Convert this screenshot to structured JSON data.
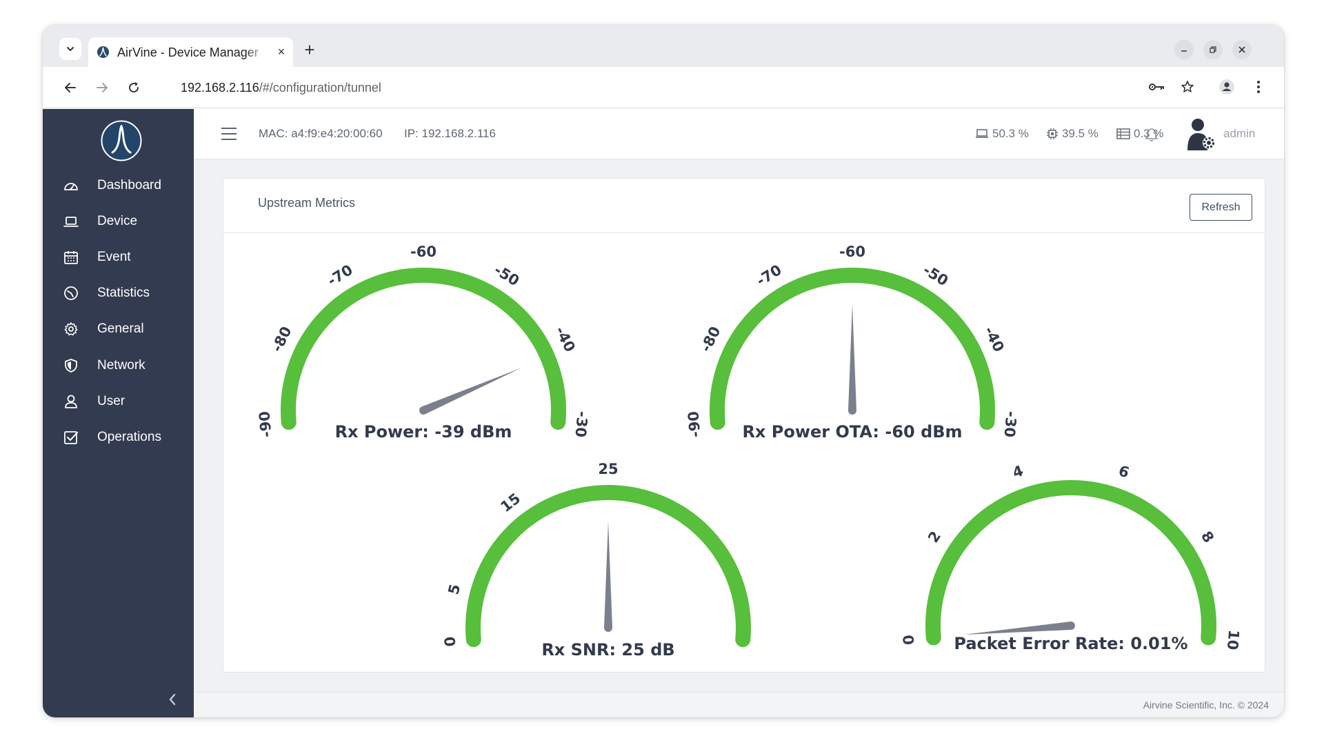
{
  "browser": {
    "tab_title": "AirVine - Device Manager",
    "url_host": "192.168.2.116",
    "url_path": "/#/configuration/tunnel",
    "new_tab_label": "+",
    "close_tab_label": "×"
  },
  "sidebar": {
    "items": [
      {
        "label": "Dashboard",
        "icon": "dashboard-icon"
      },
      {
        "label": "Device",
        "icon": "laptop-icon"
      },
      {
        "label": "Event",
        "icon": "calendar-icon"
      },
      {
        "label": "Statistics",
        "icon": "statistics-icon"
      },
      {
        "label": "General",
        "icon": "gear-icon"
      },
      {
        "label": "Network",
        "icon": "shield-icon"
      },
      {
        "label": "User",
        "icon": "user-icon"
      },
      {
        "label": "Operations",
        "icon": "checkbox-icon"
      }
    ]
  },
  "topbar": {
    "mac": "MAC: a4:f9:e4:20:00:60",
    "ip": "IP: 192.168.2.116",
    "stats": [
      {
        "icon": "laptop-icon",
        "value": "50.3 %"
      },
      {
        "icon": "cpu-icon",
        "value": "39.5 %"
      },
      {
        "icon": "memory-icon",
        "value": "0.3 %"
      }
    ],
    "user": "admin"
  },
  "card": {
    "title": "Upstream Metrics",
    "refresh_label": "Refresh"
  },
  "gauges": [
    {
      "label": "Rx Power: -39 dBm",
      "value": -39,
      "min": -90,
      "max": -30,
      "ticks": [
        "-90",
        "-80",
        "-70",
        "-60",
        "-50",
        "-40",
        "-30"
      ]
    },
    {
      "label": "Rx Power OTA: -60 dBm",
      "value": -60,
      "min": -90,
      "max": -30,
      "ticks": [
        "-90",
        "-80",
        "-70",
        "-60",
        "-50",
        "-40",
        "-30"
      ]
    },
    {
      "label": "Rx SNR: 25 dB",
      "value": 25,
      "min": 0,
      "max": 50,
      "ticks": [
        "0",
        "5",
        "15",
        "25"
      ]
    },
    {
      "label": "Packet Error Rate: 0.01%",
      "value": 0.01,
      "min": 0,
      "max": 10,
      "ticks": [
        "0",
        "2",
        "4",
        "6",
        "8",
        "10"
      ]
    }
  ],
  "colors": {
    "sidebar_bg": "#333b50",
    "gauge_arc": "#57bf3c",
    "needle": "#7a808c"
  },
  "footer": {
    "copyright": "Airvine Scientific, Inc. © 2024"
  }
}
